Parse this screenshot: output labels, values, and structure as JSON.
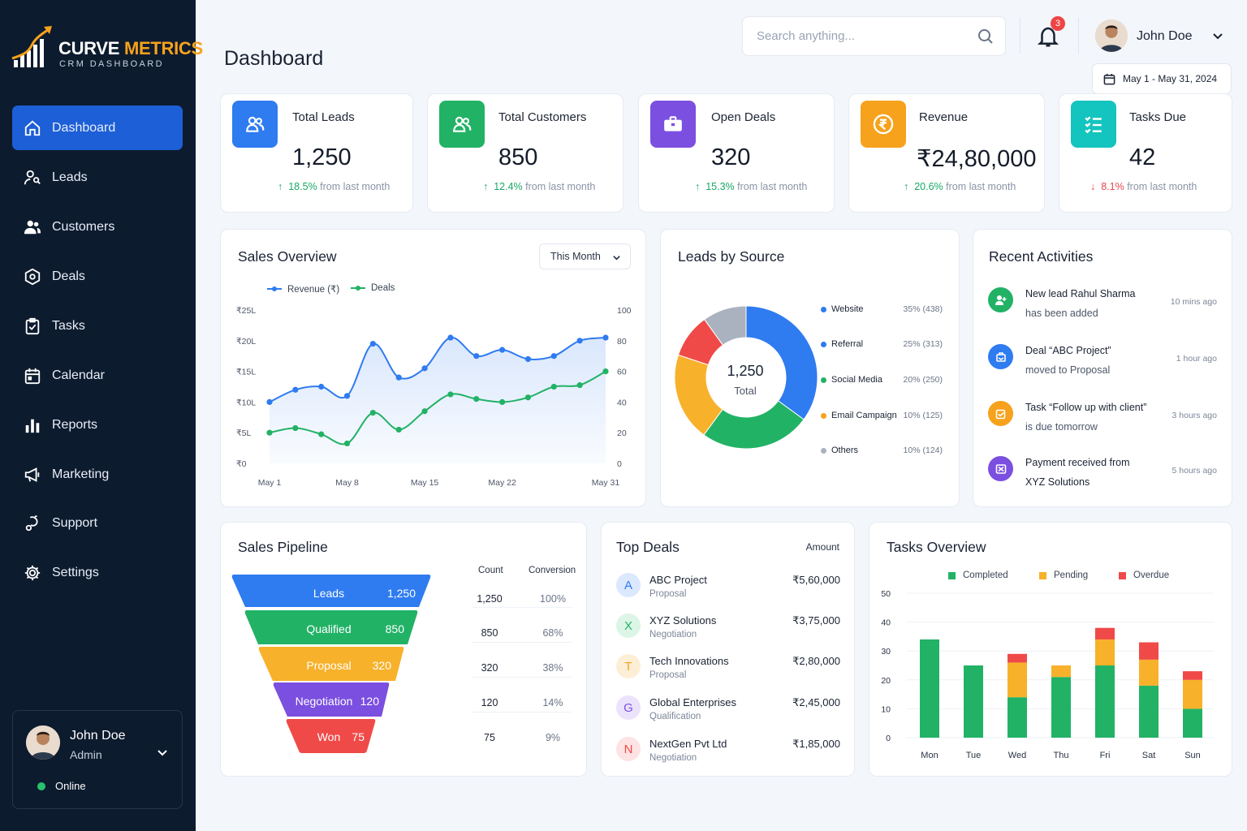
{
  "brand": {
    "name_part1": "CURVE",
    "name_part2": "METRICS",
    "subtitle": "CRM DASHBOARD"
  },
  "sidebar": {
    "items": [
      {
        "label": "Dashboard",
        "icon": "home-icon",
        "active": true
      },
      {
        "label": "Leads",
        "icon": "user-search-icon"
      },
      {
        "label": "Customers",
        "icon": "users-icon"
      },
      {
        "label": "Deals",
        "icon": "deal-tag-icon"
      },
      {
        "label": "Tasks",
        "icon": "clipboard-check-icon"
      },
      {
        "label": "Calendar",
        "icon": "calendar-icon"
      },
      {
        "label": "Reports",
        "icon": "bar-chart-icon"
      },
      {
        "label": "Marketing",
        "icon": "megaphone-icon"
      },
      {
        "label": "Support",
        "icon": "headset-icon"
      },
      {
        "label": "Settings",
        "icon": "gear-icon"
      }
    ],
    "user": {
      "name": "John Doe",
      "role": "Admin",
      "status": "Online"
    }
  },
  "header": {
    "title": "Dashboard",
    "search_placeholder": "Search anything...",
    "notifications": "3",
    "user_name": "John Doe",
    "date_range": "May 1 - May 31, 2024"
  },
  "kpis": [
    {
      "label": "Total Leads",
      "value": "1,250",
      "change": "18.5%",
      "change_text": "from last month",
      "direction": "up",
      "color": "#2f7bf0",
      "icon": "users-icon"
    },
    {
      "label": "Total Customers",
      "value": "850",
      "change": "12.4%",
      "change_text": "from last month",
      "direction": "up",
      "color": "#22b266",
      "icon": "users-icon"
    },
    {
      "label": "Open Deals",
      "value": "320",
      "change": "15.3%",
      "change_text": "from last month",
      "direction": "up",
      "color": "#7b4fe0",
      "icon": "briefcase-icon"
    },
    {
      "label": "Revenue",
      "value": "₹24,80,000",
      "change": "20.6%",
      "change_text": "from last month",
      "direction": "up",
      "color": "#f6a21c",
      "icon": "rupee-coin-icon"
    },
    {
      "label": "Tasks Due",
      "value": "42",
      "change": "8.1%",
      "change_text": "from last month",
      "direction": "down",
      "color": "#14c4bf",
      "icon": "task-list-icon"
    }
  ],
  "sales_overview": {
    "title": "Sales Overview",
    "period": "This Month"
  },
  "leads_by_source": {
    "title": "Leads by Source",
    "center_value": "1,250",
    "center_label": "Total"
  },
  "recent_activities": {
    "title": "Recent Activities",
    "items": [
      {
        "line1": "New lead Rahul Sharma",
        "line2": "has been added",
        "time": "10 mins ago",
        "color": "#22b266",
        "icon": "user-plus-icon"
      },
      {
        "line1": "Deal “ABC Project”",
        "line2": "moved to Proposal",
        "time": "1 hour ago",
        "color": "#2f7bf0",
        "icon": "handshake-icon"
      },
      {
        "line1": "Task “Follow up with client”",
        "line2": "is due tomorrow",
        "time": "3 hours ago",
        "color": "#f6a21c",
        "icon": "edit-check-icon"
      },
      {
        "line1": "Payment received from",
        "line2": "XYZ Solutions",
        "time": "5 hours ago",
        "color": "#7b4fe0",
        "icon": "payment-icon"
      }
    ]
  },
  "sales_pipeline": {
    "title": "Sales Pipeline",
    "col_count": "Count",
    "col_conversion": "Conversion",
    "stages": [
      {
        "label": "Leads",
        "value": "1,250",
        "count": "1,250",
        "conversion": "100%",
        "color": "#2f7bf0"
      },
      {
        "label": "Qualified",
        "value": "850",
        "count": "850",
        "conversion": "68%",
        "color": "#22b266"
      },
      {
        "label": "Proposal",
        "value": "320",
        "count": "320",
        "conversion": "38%",
        "color": "#f8b12a"
      },
      {
        "label": "Negotiation",
        "value": "120",
        "count": "120",
        "conversion": "14%",
        "color": "#7b4fe0"
      },
      {
        "label": "Won",
        "value": "75",
        "count": "75",
        "conversion": "9%",
        "color": "#f04a48"
      }
    ]
  },
  "top_deals": {
    "title": "Top Deals",
    "amount_header": "Amount",
    "items": [
      {
        "initial": "A",
        "name": "ABC Project",
        "stage": "Proposal",
        "amount": "₹5,60,000",
        "bg": "#dbe8fd",
        "fg": "#2f7bf0"
      },
      {
        "initial": "X",
        "name": "XYZ Solutions",
        "stage": "Negotiation",
        "amount": "₹3,75,000",
        "bg": "#dcf5e7",
        "fg": "#22b266"
      },
      {
        "initial": "T",
        "name": "Tech Innovations",
        "stage": "Proposal",
        "amount": "₹2,80,000",
        "bg": "#fdefd6",
        "fg": "#f6a21c"
      },
      {
        "initial": "G",
        "name": "Global Enterprises",
        "stage": "Qualification",
        "amount": "₹2,45,000",
        "bg": "#ebe3fb",
        "fg": "#7b4fe0"
      },
      {
        "initial": "N",
        "name": "NextGen Pvt Ltd",
        "stage": "Negotiation",
        "amount": "₹1,85,000",
        "bg": "#fde3e3",
        "fg": "#f04a48"
      }
    ]
  },
  "tasks_overview": {
    "title": "Tasks Overview"
  },
  "chart_data": [
    {
      "type": "area",
      "title": "Sales Overview",
      "x": [
        "May 1",
        "May 3",
        "May 6",
        "May 8",
        "May 11",
        "May 13",
        "May 15",
        "May 17",
        "May 20",
        "May 22",
        "May 24",
        "May 26",
        "May 29",
        "May 31"
      ],
      "x_ticks": [
        "May 1",
        "May 8",
        "May 15",
        "May 22",
        "May 31"
      ],
      "y_ticks": [
        "₹0",
        "₹5L",
        "₹10L",
        "₹15L",
        "₹20L",
        "₹25L"
      ],
      "y2_ticks": [
        "0",
        "20",
        "40",
        "60",
        "80",
        "100"
      ],
      "ylim": [
        0,
        25
      ],
      "y2lim": [
        0,
        100
      ],
      "series": [
        {
          "name": "Revenue (₹)",
          "axis": "left",
          "unit": "L",
          "color": "#2f7bf0",
          "values": [
            10,
            12,
            12.5,
            11,
            19.5,
            14,
            15.5,
            20.5,
            17.5,
            18.5,
            17,
            17.5,
            20,
            20.5
          ]
        },
        {
          "name": "Deals",
          "axis": "right",
          "color": "#22b266",
          "values": [
            20,
            23,
            19,
            13,
            33,
            22,
            34,
            45,
            42,
            40,
            43,
            50,
            51,
            60
          ]
        }
      ],
      "legend": "top-left"
    },
    {
      "type": "pie",
      "title": "Leads by Source",
      "donut": true,
      "slices": [
        {
          "label": "Website",
          "percent": "35%",
          "count": 438,
          "display": "35% (438)",
          "color": "#2f7bf0"
        },
        {
          "label": "Referral",
          "percent": "25%",
          "count": 313,
          "display": "25% (313)",
          "color": "#22b266"
        },
        {
          "label": "Social Media",
          "percent": "20%",
          "count": 250,
          "display": "20% (250)",
          "color": "#f8b12a"
        },
        {
          "label": "Email Campaign",
          "percent": "10%",
          "count": 125,
          "display": "10% (125)",
          "color": "#f04a48"
        },
        {
          "label": "Others",
          "percent": "10%",
          "count": 124,
          "display": "10% (124)",
          "color": "#aab2bf"
        }
      ],
      "legend": "right"
    },
    {
      "type": "bar",
      "title": "Tasks Overview",
      "stacked": true,
      "categories": [
        "Mon",
        "Tue",
        "Wed",
        "Thu",
        "Fri",
        "Sat",
        "Sun"
      ],
      "y_ticks": [
        "0",
        "10",
        "20",
        "30",
        "40",
        "50"
      ],
      "ylim": [
        0,
        50
      ],
      "series": [
        {
          "name": "Completed",
          "color": "#22b266",
          "values": [
            34,
            25,
            14,
            21,
            25,
            18,
            10
          ]
        },
        {
          "name": "Pending",
          "color": "#f8b12a",
          "values": [
            0,
            0,
            12,
            4,
            9,
            9,
            10
          ]
        },
        {
          "name": "Overdue",
          "color": "#f04a48",
          "values": [
            0,
            0,
            3,
            0,
            4,
            6,
            3
          ]
        }
      ],
      "grid": true,
      "legend": "top"
    }
  ]
}
